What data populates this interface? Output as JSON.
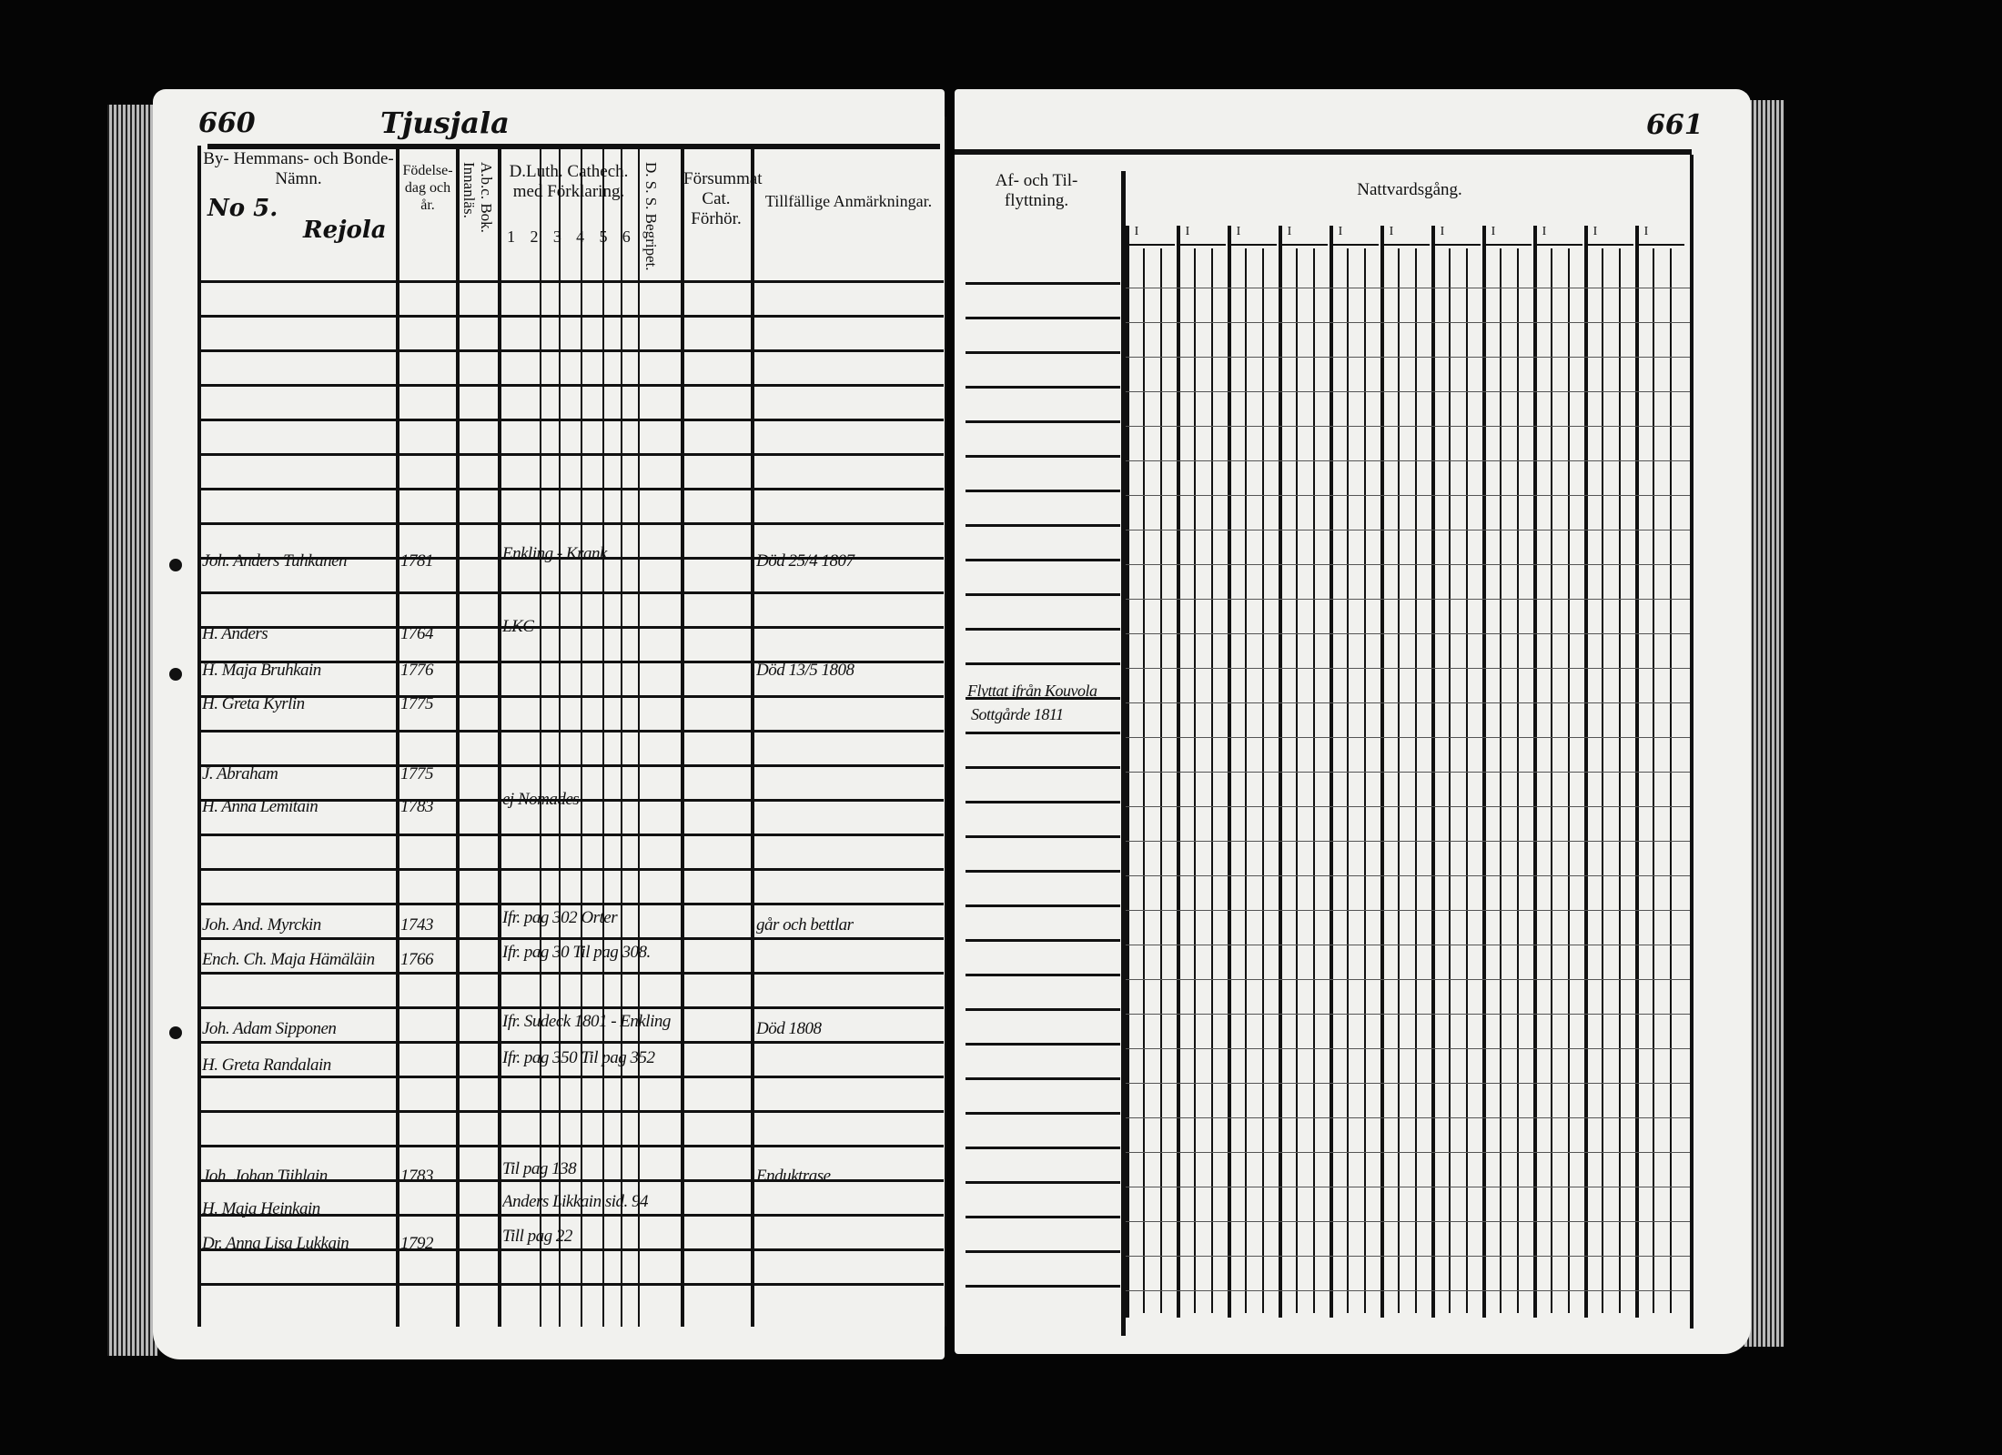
{
  "left_page": {
    "page_number": "660",
    "parish": "Tjusjala",
    "farm_number": "No 5.",
    "farm_name": "Rejola",
    "headers": {
      "name": "By- Hemmans- och Bonde-Nämn.",
      "birth": "Födelse-dag och år.",
      "abc": "A.b.c. Bok. Innanläs.",
      "catechism": "D.Luth. Cathech. med Förklaring.",
      "catechism_cols": [
        "1",
        "2",
        "3",
        "4",
        "5",
        "6"
      ],
      "dss": "D. S. S. Begripet.",
      "forsummat": "Försummat Cat. Förhör.",
      "remarks": "Tillfällige Anmärkningar."
    },
    "entries": [
      {
        "name": "Joh. Anders Tuhkanen",
        "year": "1781",
        "catechism": "Enkling - Krank",
        "remarks": "Död 25/4 1807"
      },
      {
        "name": "H. Anders",
        "year": "1764",
        "catechism": "LKC",
        "remarks": ""
      },
      {
        "name": "H. Maja Bruhkain",
        "year": "1776",
        "catechism": "",
        "remarks": "Död 13/5 1808"
      },
      {
        "name": "H. Greta Kyrlin",
        "year": "1775",
        "catechism": "",
        "remarks": ""
      },
      {
        "name": "J. Abraham",
        "year": "1775",
        "catechism": "",
        "remarks": ""
      },
      {
        "name": "H. Anna Lemitain",
        "year": "1783",
        "catechism": "ej Nomades",
        "remarks": ""
      },
      {
        "name": "Joh. And. Myrckin",
        "year": "1743",
        "catechism": "Ifr. pag 302   Orter",
        "remarks": "går och bettlar"
      },
      {
        "name": "Ench. Ch. Maja Hämäläin",
        "year": "1766",
        "catechism": "Ifr. pag 30  Til pag 308.",
        "remarks": ""
      },
      {
        "name": "Joh. Adam Sipponen",
        "year": "",
        "catechism": "Ifr. Sudeck 1801 - Enkling",
        "remarks": "Död 1808"
      },
      {
        "name": "H. Greta Randalain",
        "year": "",
        "catechism": "Ifr. pag 350  Til pag 352",
        "remarks": ""
      },
      {
        "name": "Joh. Johan Tiihlain",
        "year": "1783",
        "catechism": "Til pag 138",
        "remarks": "Enduktrase"
      },
      {
        "name": "H. Maja Heinkain",
        "year": "",
        "catechism": "Anders Likkain  sid. 94",
        "remarks": ""
      },
      {
        "name": "Dr. Anna Lisa Lukkain",
        "year": "1792",
        "catechism": "Till pag 22",
        "remarks": ""
      }
    ]
  },
  "right_page": {
    "page_number": "661",
    "headers": {
      "moving": "Af- och Til-flyttning.",
      "communion": "Nattvardsgång.",
      "communion_marks": [
        "I",
        "I",
        "I",
        "I",
        "I",
        "I",
        "I",
        "I",
        "I",
        "I",
        "I"
      ]
    },
    "moving_entries": [
      {
        "text": "Flyttat ifrån Kouvola",
        "line2": "Sottgårde 1811"
      }
    ]
  }
}
